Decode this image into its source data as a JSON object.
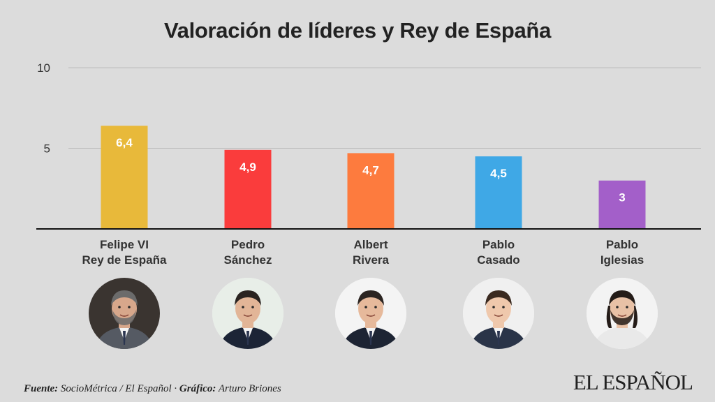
{
  "chart_data": {
    "type": "bar",
    "title": "Valoración de líderes y Rey de España",
    "categories": [
      [
        "Felipe VI",
        "Rey de España"
      ],
      [
        "Pedro",
        "Sánchez"
      ],
      [
        "Albert",
        "Rivera"
      ],
      [
        "Pablo",
        "Casado"
      ],
      [
        "Pablo",
        "Iglesias"
      ]
    ],
    "values": [
      6.4,
      4.9,
      4.7,
      4.5,
      3
    ],
    "value_labels": [
      "6,4",
      "4,9",
      "4,7",
      "4,5",
      "3"
    ],
    "colors": [
      "#e8b93a",
      "#fa3c3c",
      "#fd7b3e",
      "#3fa8e6",
      "#a35fc9"
    ],
    "yticks": [
      5,
      10
    ],
    "ylim": [
      0,
      10
    ],
    "xlabel": "",
    "ylabel": "",
    "grid": true
  },
  "people": [
    {
      "icon": "felipe-vi-portrait-icon"
    },
    {
      "icon": "pedro-sanchez-portrait-icon"
    },
    {
      "icon": "albert-rivera-portrait-icon"
    },
    {
      "icon": "pablo-casado-portrait-icon"
    },
    {
      "icon": "pablo-iglesias-portrait-icon"
    }
  ],
  "footer": {
    "source_label": "Fuente:",
    "source_text": "SocioMétrica / El Español",
    "separator": " · ",
    "graphic_label": "Gráfico:",
    "graphic_text": "Arturo Briones"
  },
  "brand": "EL ESPAÑOL"
}
